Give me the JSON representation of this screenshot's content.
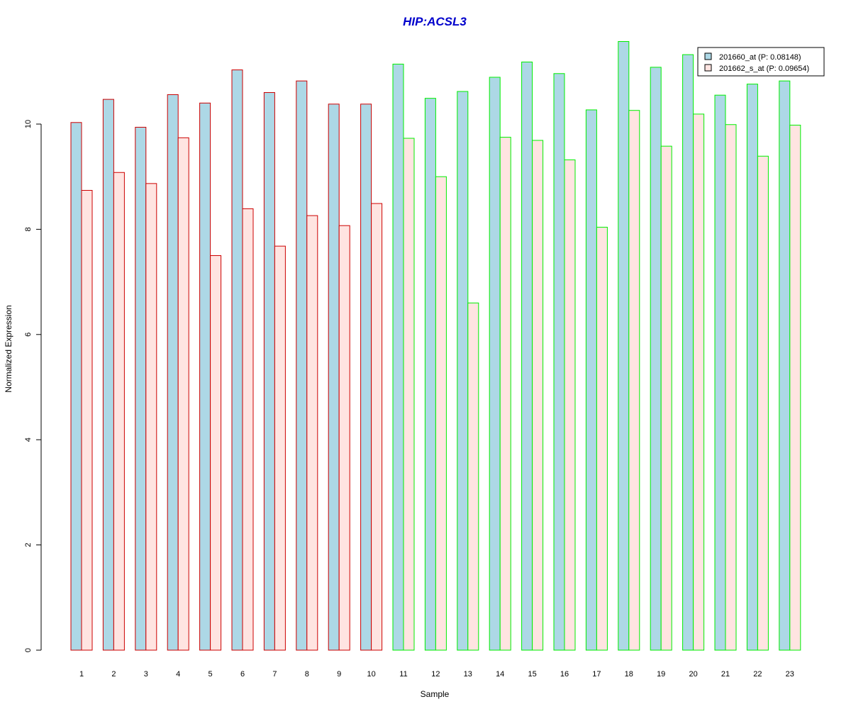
{
  "chart_data": {
    "type": "bar",
    "title": "HIP:ACSL3",
    "xlabel": "Sample",
    "ylabel": "Normalized Expression",
    "categories": [
      "1",
      "2",
      "3",
      "4",
      "5",
      "6",
      "7",
      "8",
      "9",
      "10",
      "11",
      "12",
      "13",
      "14",
      "15",
      "16",
      "17",
      "18",
      "19",
      "20",
      "21",
      "22",
      "23"
    ],
    "series": [
      {
        "name": "201660_at (P: 0.08148)",
        "fill": "#add8e6",
        "values": [
          10.03,
          10.47,
          9.94,
          10.56,
          10.4,
          11.03,
          10.6,
          10.82,
          10.38,
          10.38,
          11.14,
          10.49,
          10.62,
          10.89,
          11.18,
          10.96,
          10.27,
          11.57,
          11.08,
          11.32,
          10.55,
          10.76,
          10.82
        ]
      },
      {
        "name": "201662_s_at (P: 0.09654)",
        "fill": "#ffe4e1",
        "values": [
          8.74,
          9.08,
          8.87,
          9.74,
          7.5,
          8.39,
          7.68,
          8.26,
          8.07,
          8.49,
          9.73,
          9.0,
          6.6,
          9.75,
          9.69,
          9.32,
          8.04,
          10.26,
          9.58,
          10.19,
          9.99,
          9.39,
          9.98
        ]
      }
    ],
    "group_colors": {
      "samples_1_10": "#cc0000",
      "samples_11_23": "#00ee00"
    },
    "yticks": [
      0,
      2,
      4,
      6,
      8,
      10
    ],
    "ylim": [
      0,
      11.7
    ],
    "grid": false,
    "legend_position": "top-right",
    "title_color": "#0000cc"
  }
}
